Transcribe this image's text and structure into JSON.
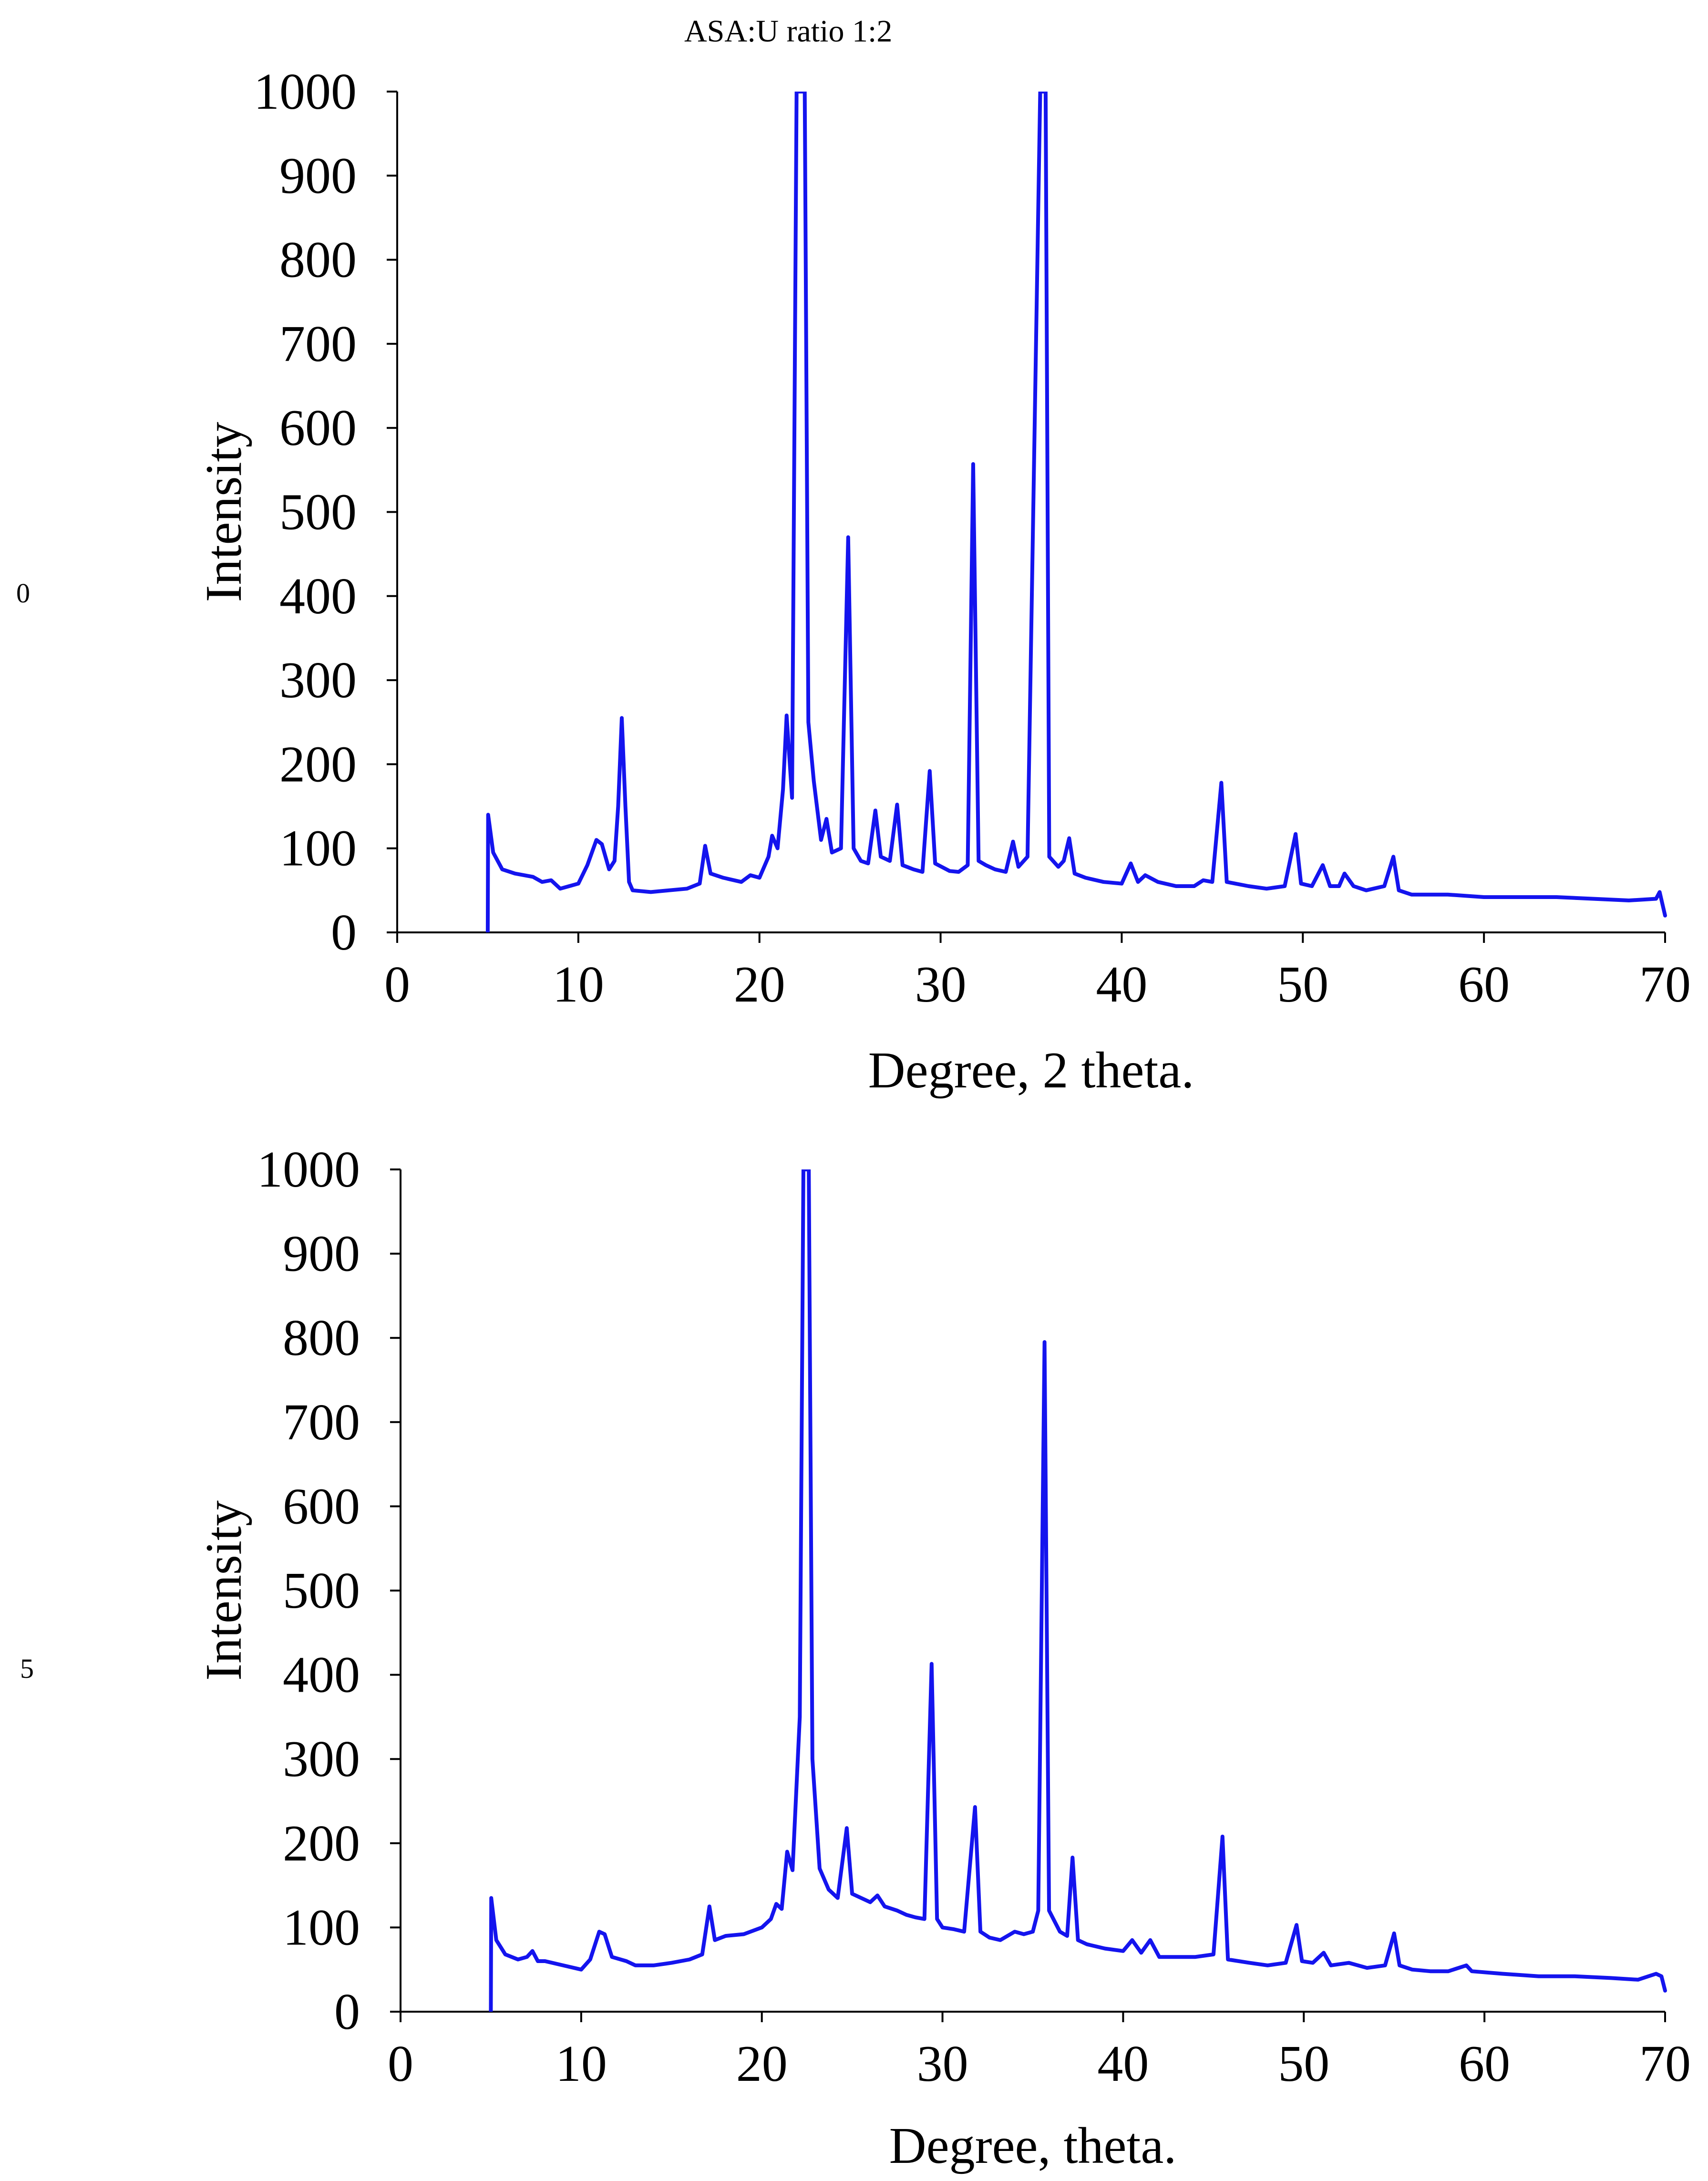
{
  "figure": {
    "title": "ASA:U ratio 1:2",
    "side_numbers": [
      "0",
      "5"
    ],
    "colors": {
      "series": "#1414ee",
      "axis": "#000000"
    }
  },
  "chart_data": [
    {
      "type": "line",
      "title": "",
      "xlabel": "Degree, 2 theta.",
      "ylabel": "Intensity",
      "xlim": [
        0,
        70
      ],
      "ylim": [
        0,
        1000
      ],
      "xticks": [
        0,
        10,
        20,
        30,
        40,
        50,
        60,
        70
      ],
      "yticks": [
        0,
        100,
        200,
        300,
        400,
        500,
        600,
        700,
        800,
        900,
        1000
      ],
      "grid": false,
      "legend": "none",
      "series": [
        {
          "name": "ASA:U 1:2 (top)",
          "color": "#1414ee",
          "points": [
            [
              5,
              0
            ],
            [
              5.02,
              140
            ],
            [
              5.3,
              95
            ],
            [
              5.8,
              75
            ],
            [
              6.5,
              70
            ],
            [
              7,
              68
            ],
            [
              7.5,
              66
            ],
            [
              8,
              60
            ],
            [
              8.5,
              62
            ],
            [
              9,
              52
            ],
            [
              9.5,
              55
            ],
            [
              10,
              58
            ],
            [
              10.5,
              80
            ],
            [
              11,
              110
            ],
            [
              11.3,
              105
            ],
            [
              11.7,
              75
            ],
            [
              12,
              85
            ],
            [
              12.2,
              150
            ],
            [
              12.4,
              255
            ],
            [
              12.6,
              150
            ],
            [
              12.8,
              60
            ],
            [
              13,
              50
            ],
            [
              14,
              48
            ],
            [
              15,
              50
            ],
            [
              16,
              52
            ],
            [
              16.7,
              58
            ],
            [
              17,
              103
            ],
            [
              17.3,
              70
            ],
            [
              18,
              65
            ],
            [
              19,
              60
            ],
            [
              19.5,
              68
            ],
            [
              20,
              65
            ],
            [
              20.5,
              90
            ],
            [
              20.7,
              115
            ],
            [
              21,
              100
            ],
            [
              21.3,
              170
            ],
            [
              21.5,
              258
            ],
            [
              21.8,
              160
            ],
            [
              22.05,
              1000
            ],
            [
              22.5,
              1000
            ],
            [
              22.7,
              250
            ],
            [
              23,
              180
            ],
            [
              23.4,
              110
            ],
            [
              23.7,
              135
            ],
            [
              24,
              95
            ],
            [
              24.5,
              100
            ],
            [
              24.9,
              470
            ],
            [
              25.2,
              100
            ],
            [
              25.6,
              85
            ],
            [
              26,
              82
            ],
            [
              26.4,
              145
            ],
            [
              26.7,
              90
            ],
            [
              27.2,
              85
            ],
            [
              27.6,
              152
            ],
            [
              27.9,
              80
            ],
            [
              28.5,
              75
            ],
            [
              29,
              72
            ],
            [
              29.4,
              192
            ],
            [
              29.7,
              82
            ],
            [
              30.5,
              73
            ],
            [
              31,
              72
            ],
            [
              31.5,
              80
            ],
            [
              31.8,
              557
            ],
            [
              32.1,
              85
            ],
            [
              32.5,
              80
            ],
            [
              33,
              75
            ],
            [
              33.6,
              72
            ],
            [
              34,
              108
            ],
            [
              34.3,
              78
            ],
            [
              34.8,
              90
            ],
            [
              35.5,
              1000
            ],
            [
              35.8,
              1000
            ],
            [
              36,
              90
            ],
            [
              36.5,
              78
            ],
            [
              36.8,
              85
            ],
            [
              37.1,
              112
            ],
            [
              37.4,
              70
            ],
            [
              38,
              65
            ],
            [
              39,
              60
            ],
            [
              40,
              58
            ],
            [
              40.5,
              82
            ],
            [
              40.9,
              60
            ],
            [
              41.3,
              68
            ],
            [
              42,
              60
            ],
            [
              43,
              55
            ],
            [
              44,
              55
            ],
            [
              44.5,
              62
            ],
            [
              45,
              60
            ],
            [
              45.5,
              178
            ],
            [
              45.8,
              60
            ],
            [
              47,
              55
            ],
            [
              48,
              52
            ],
            [
              49,
              55
            ],
            [
              49.6,
              117
            ],
            [
              49.9,
              58
            ],
            [
              50.5,
              55
            ],
            [
              51.1,
              80
            ],
            [
              51.5,
              55
            ],
            [
              52,
              55
            ],
            [
              52.3,
              70
            ],
            [
              52.8,
              55
            ],
            [
              53.5,
              50
            ],
            [
              54.5,
              55
            ],
            [
              55,
              90
            ],
            [
              55.3,
              50
            ],
            [
              56,
              45
            ],
            [
              58,
              45
            ],
            [
              60,
              42
            ],
            [
              62,
              42
            ],
            [
              64,
              42
            ],
            [
              66,
              40
            ],
            [
              68,
              38
            ],
            [
              69.5,
              40
            ],
            [
              69.7,
              48
            ],
            [
              70,
              20
            ]
          ]
        }
      ]
    },
    {
      "type": "line",
      "title": "",
      "xlabel": "Degree, theta.",
      "ylabel": "Intensity",
      "xlim": [
        0,
        70
      ],
      "ylim": [
        0,
        1000
      ],
      "xticks": [
        0,
        10,
        20,
        30,
        40,
        50,
        60,
        70
      ],
      "yticks": [
        0,
        100,
        200,
        300,
        400,
        500,
        600,
        700,
        800,
        900,
        1000
      ],
      "grid": false,
      "legend": "none",
      "series": [
        {
          "name": "ASA:U 1:2 (bottom)",
          "color": "#1414ee",
          "points": [
            [
              5,
              0
            ],
            [
              5.02,
              135
            ],
            [
              5.3,
              85
            ],
            [
              5.8,
              68
            ],
            [
              6.5,
              62
            ],
            [
              7,
              65
            ],
            [
              7.3,
              72
            ],
            [
              7.6,
              60
            ],
            [
              8,
              60
            ],
            [
              9,
              55
            ],
            [
              10,
              50
            ],
            [
              10.5,
              62
            ],
            [
              11,
              95
            ],
            [
              11.3,
              92
            ],
            [
              11.7,
              65
            ],
            [
              12.5,
              60
            ],
            [
              13,
              55
            ],
            [
              14,
              55
            ],
            [
              15,
              58
            ],
            [
              16,
              62
            ],
            [
              16.7,
              68
            ],
            [
              17.1,
              125
            ],
            [
              17.4,
              85
            ],
            [
              18,
              90
            ],
            [
              19,
              92
            ],
            [
              20,
              100
            ],
            [
              20.5,
              110
            ],
            [
              20.8,
              128
            ],
            [
              21.1,
              122
            ],
            [
              21.4,
              190
            ],
            [
              21.7,
              168
            ],
            [
              22.1,
              350
            ],
            [
              22.3,
              1000
            ],
            [
              22.6,
              1000
            ],
            [
              22.8,
              300
            ],
            [
              23.2,
              170
            ],
            [
              23.7,
              145
            ],
            [
              24.2,
              135
            ],
            [
              24.7,
              218
            ],
            [
              25,
              140
            ],
            [
              25.5,
              135
            ],
            [
              26,
              130
            ],
            [
              26.4,
              138
            ],
            [
              26.8,
              125
            ],
            [
              27.5,
              120
            ],
            [
              28,
              115
            ],
            [
              28.5,
              112
            ],
            [
              29,
              110
            ],
            [
              29.4,
              413
            ],
            [
              29.7,
              110
            ],
            [
              30,
              100
            ],
            [
              30.6,
              98
            ],
            [
              31.2,
              95
            ],
            [
              31.8,
              243
            ],
            [
              32.1,
              95
            ],
            [
              32.6,
              88
            ],
            [
              33.2,
              85
            ],
            [
              34,
              95
            ],
            [
              34.5,
              92
            ],
            [
              35,
              95
            ],
            [
              35.3,
              120
            ],
            [
              35.5,
              500
            ],
            [
              35.65,
              795
            ],
            [
              35.9,
              120
            ],
            [
              36.5,
              95
            ],
            [
              36.9,
              90
            ],
            [
              37.2,
              183
            ],
            [
              37.5,
              85
            ],
            [
              38,
              80
            ],
            [
              39,
              75
            ],
            [
              40,
              72
            ],
            [
              40.5,
              85
            ],
            [
              41,
              70
            ],
            [
              41.5,
              85
            ],
            [
              42,
              65
            ],
            [
              43,
              65
            ],
            [
              44,
              65
            ],
            [
              45,
              68
            ],
            [
              45.5,
              208
            ],
            [
              45.8,
              62
            ],
            [
              47,
              58
            ],
            [
              48,
              55
            ],
            [
              49,
              58
            ],
            [
              49.6,
              103
            ],
            [
              49.9,
              60
            ],
            [
              50.5,
              58
            ],
            [
              51.1,
              70
            ],
            [
              51.5,
              55
            ],
            [
              52.5,
              58
            ],
            [
              53.5,
              52
            ],
            [
              54.5,
              55
            ],
            [
              55,
              93
            ],
            [
              55.3,
              55
            ],
            [
              56,
              50
            ],
            [
              57,
              48
            ],
            [
              58,
              48
            ],
            [
              59,
              55
            ],
            [
              59.3,
              48
            ],
            [
              61,
              45
            ],
            [
              63,
              42
            ],
            [
              65,
              42
            ],
            [
              67,
              40
            ],
            [
              68.5,
              38
            ],
            [
              69.5,
              45
            ],
            [
              69.8,
              42
            ],
            [
              70,
              25
            ]
          ]
        }
      ]
    }
  ]
}
